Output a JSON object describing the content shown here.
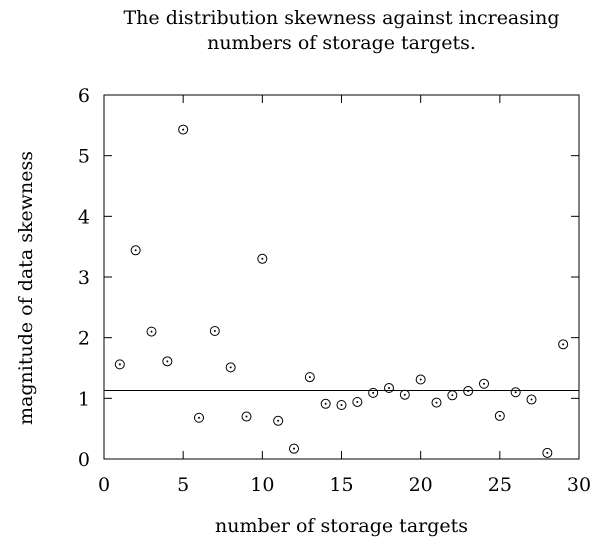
{
  "chart_data": {
    "type": "scatter",
    "title": "The distribution skewness against increasing numbers of storage targets.",
    "xlabel": "number of storage targets",
    "ylabel": "magnitude of data skewness",
    "xlim": [
      0,
      30
    ],
    "ylim": [
      0,
      6
    ],
    "xticks": [
      0,
      5,
      10,
      15,
      20,
      25,
      30
    ],
    "yticks": [
      0,
      1,
      2,
      3,
      4,
      5,
      6
    ],
    "grid": false,
    "legend": "none",
    "reference_line": {
      "y": 1.13
    },
    "points": [
      {
        "x": 1,
        "y": 1.56
      },
      {
        "x": 2,
        "y": 3.44
      },
      {
        "x": 3,
        "y": 2.1
      },
      {
        "x": 4,
        "y": 1.61
      },
      {
        "x": 5,
        "y": 5.43
      },
      {
        "x": 6,
        "y": 0.68
      },
      {
        "x": 7,
        "y": 2.11
      },
      {
        "x": 8,
        "y": 1.51
      },
      {
        "x": 9,
        "y": 0.7
      },
      {
        "x": 10,
        "y": 3.3
      },
      {
        "x": 11,
        "y": 0.63
      },
      {
        "x": 12,
        "y": 0.17
      },
      {
        "x": 13,
        "y": 1.35
      },
      {
        "x": 14,
        "y": 0.91
      },
      {
        "x": 15,
        "y": 0.89
      },
      {
        "x": 16,
        "y": 0.94
      },
      {
        "x": 17,
        "y": 1.09
      },
      {
        "x": 18,
        "y": 1.17
      },
      {
        "x": 19,
        "y": 1.06
      },
      {
        "x": 20,
        "y": 1.31
      },
      {
        "x": 21,
        "y": 0.93
      },
      {
        "x": 22,
        "y": 1.05
      },
      {
        "x": 23,
        "y": 1.12
      },
      {
        "x": 24,
        "y": 1.24
      },
      {
        "x": 25,
        "y": 0.71
      },
      {
        "x": 26,
        "y": 1.1
      },
      {
        "x": 27,
        "y": 0.98
      },
      {
        "x": 28,
        "y": 0.1
      },
      {
        "x": 29,
        "y": 1.89
      }
    ],
    "colors": {
      "marker": "#000000",
      "axis": "#000000",
      "line": "#000000"
    }
  }
}
